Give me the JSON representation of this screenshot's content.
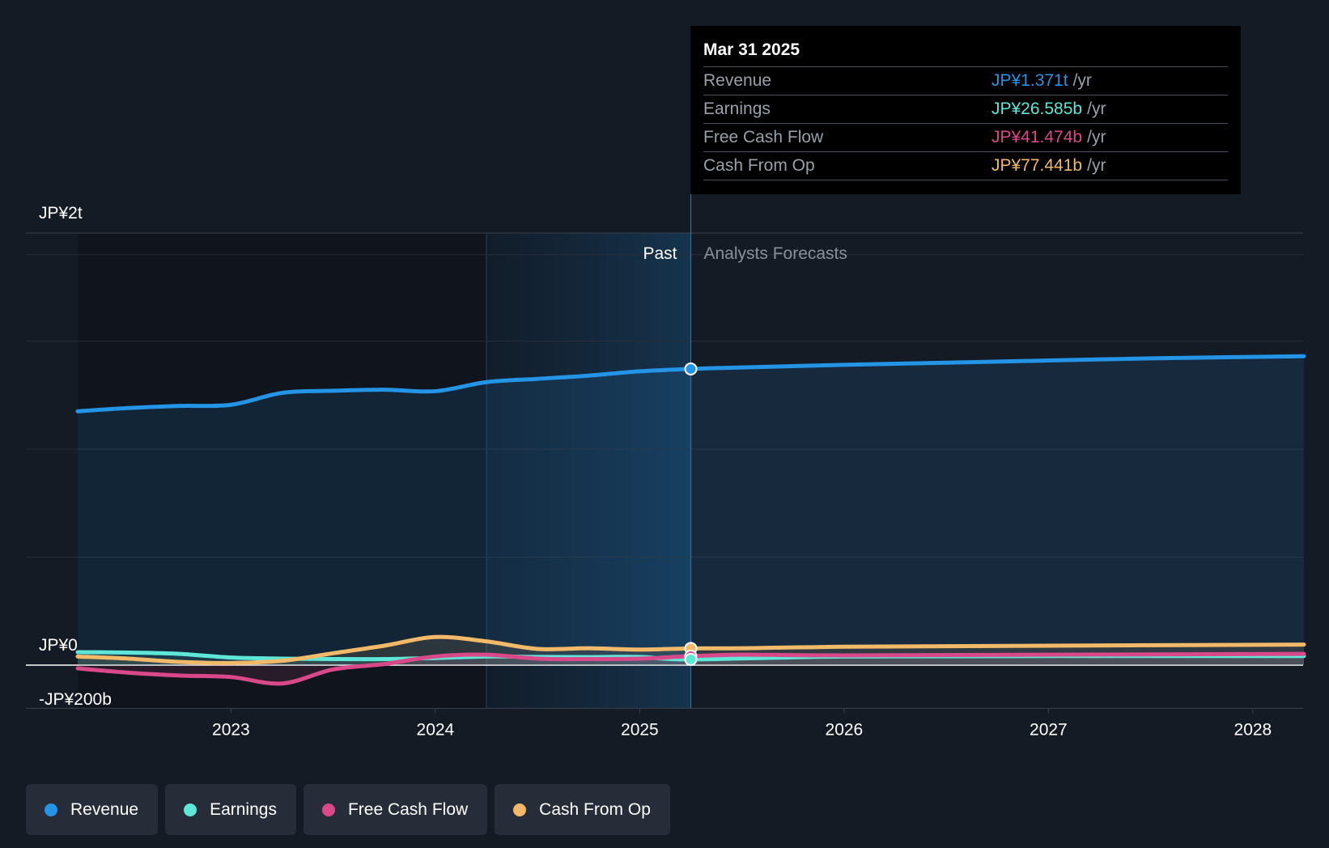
{
  "tooltip": {
    "date": "Mar 31 2025",
    "rows": [
      {
        "label": "Revenue",
        "value": "JP¥1.371t",
        "unit": "/yr",
        "color": "#2394e6"
      },
      {
        "label": "Earnings",
        "value": "JP¥26.585b",
        "unit": "/yr",
        "color": "#5ee6d6"
      },
      {
        "label": "Free Cash Flow",
        "value": "JP¥41.474b",
        "unit": "/yr",
        "color": "#d9498a"
      },
      {
        "label": "Cash From Op",
        "value": "JP¥77.441b",
        "unit": "/yr",
        "color": "#f2b968"
      }
    ]
  },
  "legend": [
    {
      "label": "Revenue",
      "color": "#2394e6"
    },
    {
      "label": "Earnings",
      "color": "#5ee6d6"
    },
    {
      "label": "Free Cash Flow",
      "color": "#d9498a"
    },
    {
      "label": "Cash From Op",
      "color": "#f2b968"
    }
  ],
  "chart_data": {
    "type": "line",
    "y_tick_labels": [
      "JP¥2t",
      "JP¥0",
      "-JP¥200b"
    ],
    "x_ticks": [
      "2023",
      "2024",
      "2025",
      "2026",
      "2027",
      "2028"
    ],
    "past_label": "Past",
    "forecast_label": "Analysts Forecasts",
    "ylim": [
      -200,
      2000
    ],
    "xlim": [
      2022.25,
      2028.25
    ],
    "divider_x": 2025.25,
    "highlight_start_x": 2024.25,
    "units": "JP¥ billions",
    "grid": true,
    "series": [
      {
        "name": "Revenue",
        "color": "#2394e6",
        "x": [
          2022.25,
          2022.5,
          2022.75,
          2023.0,
          2023.25,
          2023.5,
          2023.75,
          2024.0,
          2024.25,
          2024.5,
          2024.75,
          2025.0,
          2025.25,
          2025.5,
          2026.0,
          2026.5,
          2027.0,
          2027.5,
          2028.25
        ],
        "values": [
          1175,
          1190,
          1200,
          1205,
          1260,
          1270,
          1275,
          1268,
          1310,
          1325,
          1340,
          1360,
          1371,
          1378,
          1390,
          1400,
          1410,
          1420,
          1430
        ]
      },
      {
        "name": "Earnings",
        "color": "#5ee6d6",
        "x": [
          2022.25,
          2022.5,
          2022.75,
          2023.0,
          2023.25,
          2023.5,
          2023.75,
          2024.0,
          2024.25,
          2024.5,
          2024.75,
          2025.0,
          2025.25,
          2026.0,
          2027.0,
          2028.25
        ],
        "values": [
          60,
          58,
          52,
          35,
          30,
          28,
          28,
          33,
          40,
          38,
          37,
          38,
          26.585,
          40,
          42,
          42
        ]
      },
      {
        "name": "Free Cash Flow",
        "color": "#d9498a",
        "x": [
          2022.25,
          2022.5,
          2022.75,
          2023.0,
          2023.25,
          2023.5,
          2023.75,
          2024.0,
          2024.25,
          2024.5,
          2024.75,
          2025.0,
          2025.25,
          2025.5,
          2026.0,
          2027.0,
          2028.25
        ],
        "values": [
          -15,
          -35,
          -48,
          -55,
          -85,
          -20,
          5,
          40,
          48,
          30,
          28,
          30,
          41.474,
          48,
          45,
          48,
          52
        ]
      },
      {
        "name": "Cash From Op",
        "color": "#f2b968",
        "x": [
          2022.25,
          2022.5,
          2022.75,
          2023.0,
          2023.25,
          2023.5,
          2023.75,
          2024.0,
          2024.25,
          2024.5,
          2024.75,
          2025.0,
          2025.25,
          2025.5,
          2026.0,
          2027.0,
          2028.25
        ],
        "values": [
          40,
          30,
          15,
          10,
          20,
          55,
          90,
          130,
          110,
          75,
          78,
          72,
          77.441,
          78,
          85,
          90,
          95
        ]
      }
    ]
  }
}
